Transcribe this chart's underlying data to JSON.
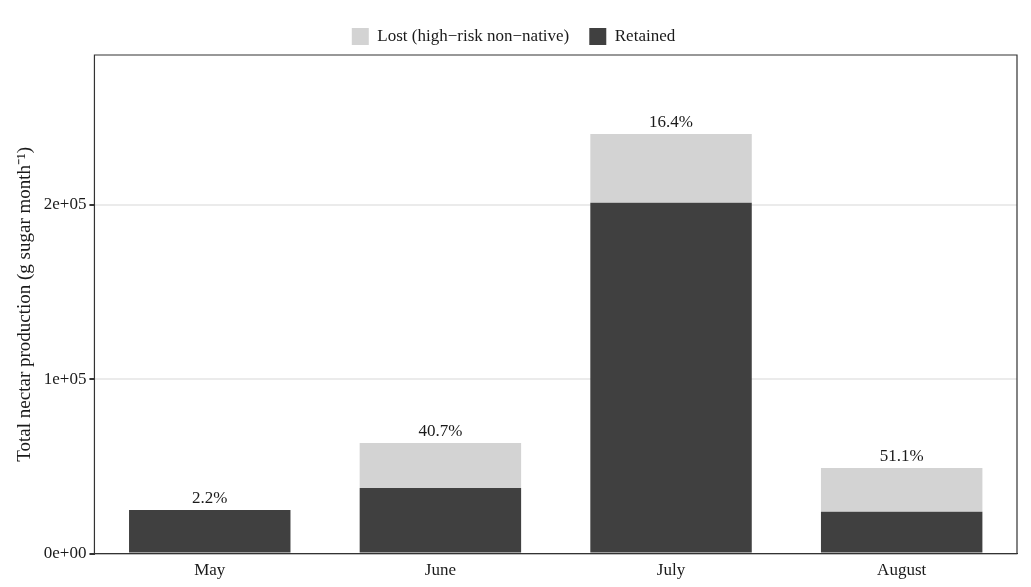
{
  "chart_data": {
    "type": "bar",
    "stacked": true,
    "categories": [
      "May",
      "June",
      "July",
      "August"
    ],
    "series": [
      {
        "name": "Retained",
        "color": "#404040",
        "values": [
          25000,
          37700,
          201300,
          24000
        ]
      },
      {
        "name": "Lost (high−risk non−native)",
        "color": "#d3d3d3",
        "values": [
          null,
          25800,
          39400,
          25100
        ]
      }
    ],
    "ylabel": "Total nectar production (g sugar month⁻¹)",
    "ylim": [
      0,
      286000
    ],
    "yticks": [
      {
        "value": 0,
        "label": "0e+00"
      },
      {
        "value": 100000,
        "label": "1e+05"
      },
      {
        "value": 200000,
        "label": "2e+05"
      }
    ],
    "grid": "y",
    "legend": "top",
    "annotations": [
      {
        "text": "2.2%",
        "x": "May",
        "y": 25000
      },
      {
        "text": "40.7%",
        "x": "June",
        "y": 63500
      },
      {
        "text": "16.4%",
        "x": "July",
        "y": 240700
      },
      {
        "text": "51.1%",
        "x": "August",
        "y": 49100
      }
    ]
  }
}
